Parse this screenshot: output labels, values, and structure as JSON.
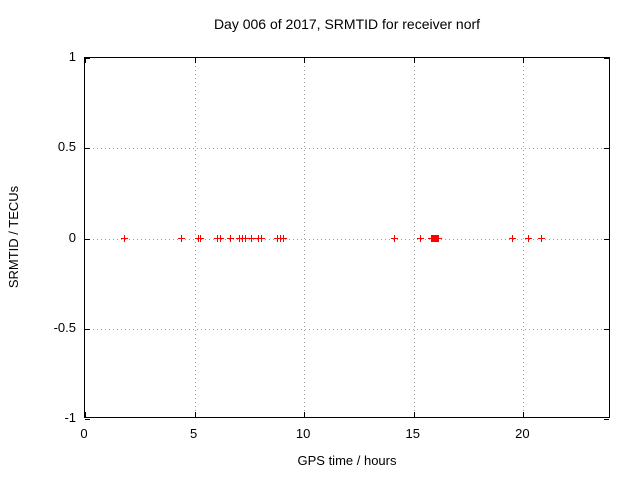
{
  "chart_data": {
    "type": "scatter",
    "title": "Day 006 of 2017, SRMTID for receiver norf",
    "xlabel": "GPS time / hours",
    "ylabel": "SRMTID / TECUs",
    "xlim": [
      0,
      24
    ],
    "ylim": [
      -1,
      1
    ],
    "xticks": [
      0,
      5,
      10,
      15,
      20
    ],
    "yticks": [
      -1,
      -0.5,
      0,
      0.5,
      1
    ],
    "xtick_labels": [
      "0",
      "5",
      "10",
      "15",
      "20"
    ],
    "ytick_labels": [
      "-1",
      "-0.5",
      "0",
      "0.5",
      "1"
    ],
    "grid": true,
    "legend": null,
    "marker": "plus",
    "colors": {
      "marker": "#ff0000",
      "grid": "#9e9e9e",
      "border": "#000000",
      "text": "#000000",
      "background": "#ffffff"
    },
    "series": [
      {
        "name": "SRMTID",
        "x": [
          1.82,
          4.39,
          5.2,
          5.27,
          6.05,
          6.19,
          6.66,
          7.07,
          7.19,
          7.31,
          7.6,
          7.92,
          8.04,
          8.79,
          8.91,
          9.05,
          14.14,
          15.3,
          15.79,
          15.84,
          15.89,
          15.93,
          15.98,
          16.03,
          16.08,
          16.13,
          19.51,
          20.22,
          20.83
        ],
        "y": [
          0,
          0,
          0,
          0,
          0,
          0,
          0,
          0,
          0,
          0,
          0,
          0,
          0,
          0,
          0,
          0,
          0,
          0,
          0,
          0,
          0,
          0,
          0,
          0,
          0,
          0,
          0,
          0,
          0
        ]
      }
    ]
  }
}
